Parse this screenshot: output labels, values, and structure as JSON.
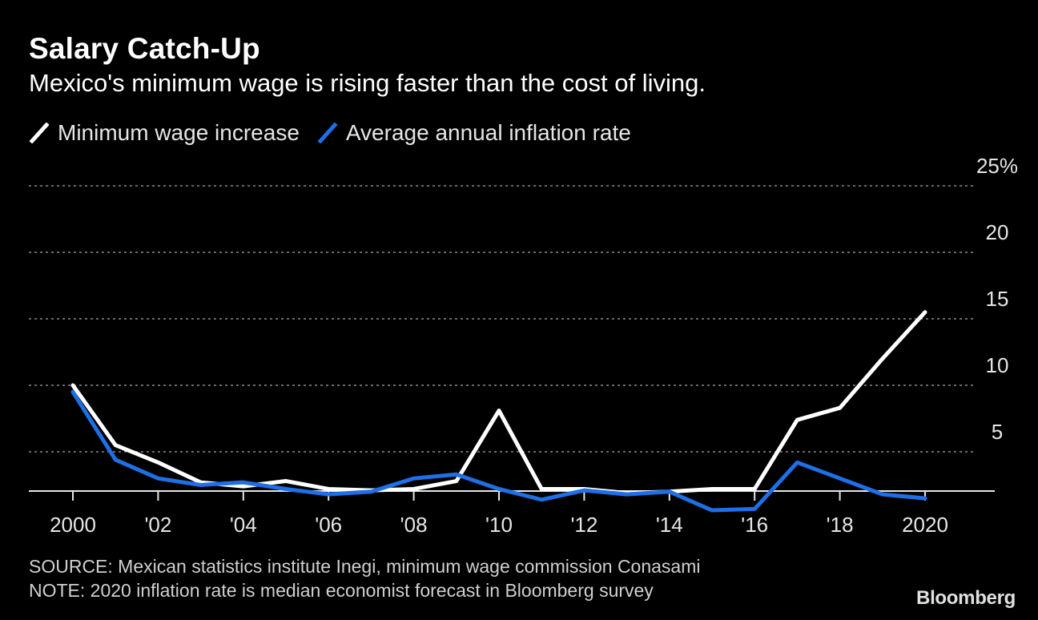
{
  "header": {
    "title": "Salary Catch-Up",
    "subtitle": "Mexico's minimum wage is rising faster than the cost of living."
  },
  "legend": [
    {
      "label": "Minimum wage increase",
      "color": "#ffffff"
    },
    {
      "label": "Average annual inflation rate",
      "color": "#1f6fe6"
    }
  ],
  "footer": {
    "source": "SOURCE: Mexican statistics institute Inegi, minimum wage commission Conasami",
    "note": "NOTE: 2020 inflation rate is median economist forecast in Bloomberg survey"
  },
  "brand": "Bloomberg",
  "chart_data": {
    "type": "line",
    "x": [
      2000,
      2001,
      2002,
      2003,
      2004,
      2005,
      2006,
      2007,
      2008,
      2009,
      2010,
      2011,
      2012,
      2013,
      2014,
      2015,
      2016,
      2017,
      2018,
      2019,
      2020
    ],
    "series": [
      {
        "name": "Minimum wage increase",
        "color": "#ffffff",
        "values": [
          10.0,
          5.5,
          4.2,
          2.7,
          2.4,
          2.8,
          2.2,
          2.1,
          2.2,
          2.8,
          8.1,
          2.2,
          2.2,
          1.9,
          2.0,
          2.2,
          2.2,
          7.4,
          8.3,
          12.0,
          15.5
        ]
      },
      {
        "name": "Average annual inflation rate",
        "color": "#1f6fe6",
        "values": [
          9.5,
          4.4,
          3.0,
          2.5,
          2.7,
          2.2,
          1.8,
          2.0,
          3.0,
          3.3,
          2.2,
          1.4,
          2.1,
          1.8,
          2.0,
          0.6,
          0.7,
          4.2,
          3.0,
          1.8,
          1.5
        ]
      }
    ],
    "xticks": [
      {
        "value": 2000,
        "label": "2000"
      },
      {
        "value": 2002,
        "label": "'02"
      },
      {
        "value": 2004,
        "label": "'04"
      },
      {
        "value": 2006,
        "label": "'06"
      },
      {
        "value": 2008,
        "label": "'08"
      },
      {
        "value": 2010,
        "label": "'10"
      },
      {
        "value": 2012,
        "label": "'12"
      },
      {
        "value": 2014,
        "label": "'14"
      },
      {
        "value": 2016,
        "label": "'16"
      },
      {
        "value": 2018,
        "label": "'18"
      },
      {
        "value": 2020,
        "label": "2020"
      }
    ],
    "yticks": [
      {
        "value": 5,
        "label": "5"
      },
      {
        "value": 10,
        "label": "10"
      },
      {
        "value": 15,
        "label": "15"
      },
      {
        "value": 20,
        "label": "20"
      },
      {
        "value": 25,
        "label": "25%"
      }
    ],
    "ylim": [
      0,
      25
    ],
    "grid": true
  }
}
